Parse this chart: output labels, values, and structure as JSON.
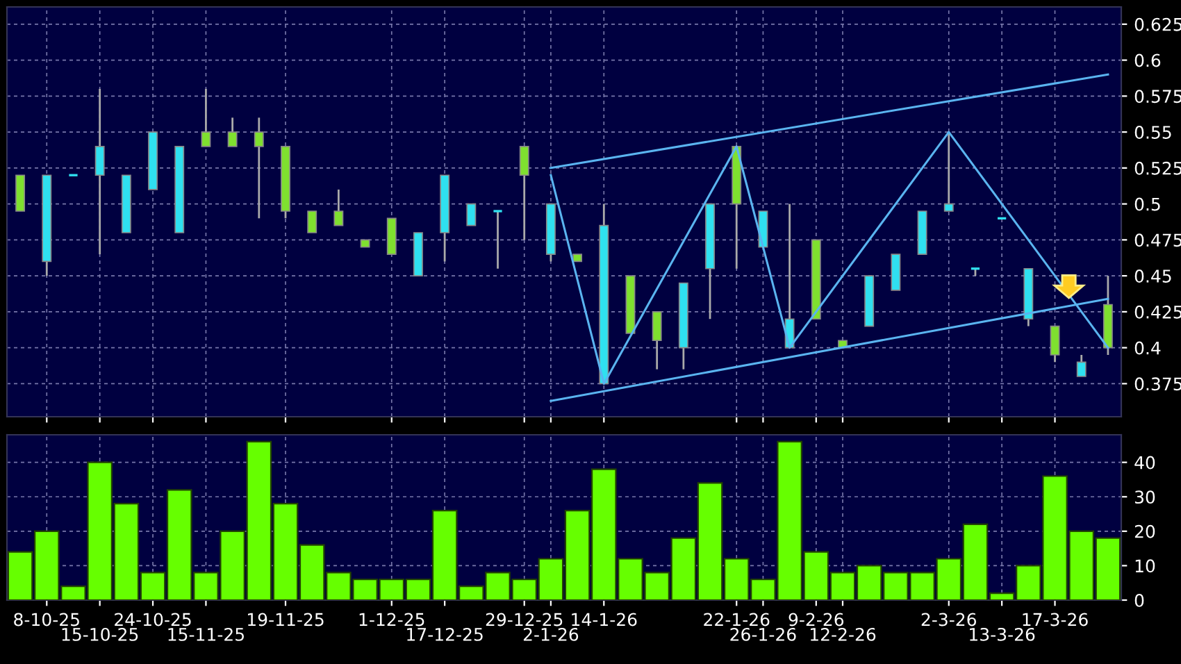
{
  "chart_data": [
    {
      "type": "candlestick",
      "ohlc": [
        [
          0.52,
          0.52,
          0.495,
          0.495
        ],
        [
          0.46,
          0.52,
          0.45,
          0.52
        ],
        [
          0.52,
          0.52,
          0.52,
          0.52
        ],
        [
          0.52,
          0.58,
          0.465,
          0.54
        ],
        [
          0.48,
          0.52,
          0.48,
          0.52
        ],
        [
          0.51,
          0.55,
          0.51,
          0.55
        ],
        [
          0.48,
          0.54,
          0.48,
          0.54
        ],
        [
          0.55,
          0.58,
          0.54,
          0.54
        ],
        [
          0.55,
          0.56,
          0.54,
          0.54
        ],
        [
          0.55,
          0.56,
          0.49,
          0.54
        ],
        [
          0.54,
          0.54,
          0.49,
          0.495
        ],
        [
          0.495,
          0.495,
          0.48,
          0.48
        ],
        [
          0.495,
          0.51,
          0.485,
          0.485
        ],
        [
          0.475,
          0.475,
          0.47,
          0.47
        ],
        [
          0.49,
          0.49,
          0.465,
          0.465
        ],
        [
          0.45,
          0.48,
          0.45,
          0.48
        ],
        [
          0.48,
          0.52,
          0.46,
          0.52
        ],
        [
          0.485,
          0.5,
          0.485,
          0.5
        ],
        [
          0.495,
          0.495,
          0.455,
          0.495
        ],
        [
          0.54,
          0.54,
          0.475,
          0.52
        ],
        [
          0.465,
          0.5,
          0.46,
          0.5
        ],
        [
          0.465,
          0.465,
          0.46,
          0.46
        ],
        [
          0.375,
          0.5,
          0.375,
          0.485
        ],
        [
          0.45,
          0.45,
          0.41,
          0.41
        ],
        [
          0.425,
          0.425,
          0.385,
          0.405
        ],
        [
          0.4,
          0.445,
          0.385,
          0.445
        ],
        [
          0.455,
          0.5,
          0.42,
          0.5
        ],
        [
          0.54,
          0.54,
          0.455,
          0.5
        ],
        [
          0.47,
          0.495,
          0.47,
          0.495
        ],
        [
          0.4,
          0.5,
          0.4,
          0.42
        ],
        [
          0.475,
          0.475,
          0.42,
          0.42
        ],
        [
          0.405,
          0.405,
          0.4,
          0.4
        ],
        [
          0.415,
          0.45,
          0.415,
          0.45
        ],
        [
          0.44,
          0.465,
          0.44,
          0.465
        ],
        [
          0.465,
          0.495,
          0.465,
          0.495
        ],
        [
          0.495,
          0.55,
          0.495,
          0.5
        ],
        [
          0.455,
          0.455,
          0.45,
          0.455
        ],
        [
          0.49,
          0.49,
          0.49,
          0.49
        ],
        [
          0.42,
          0.455,
          0.415,
          0.455
        ],
        [
          0.415,
          0.415,
          0.39,
          0.395
        ],
        [
          0.38,
          0.395,
          0.38,
          0.39
        ],
        [
          0.43,
          0.45,
          0.395,
          0.4
        ]
      ],
      "colors": [
        "#7fe02f",
        "#2fe0f0",
        "#2fe0f0",
        "#2fe0f0",
        "#2fe0f0",
        "#2fe0f0",
        "#2fe0f0",
        "#7fe02f",
        "#7fe02f",
        "#7fe02f",
        "#7fe02f",
        "#7fe02f",
        "#7fe02f",
        "#7fe02f",
        "#7fe02f",
        "#2fe0f0",
        "#2fe0f0",
        "#2fe0f0",
        "#2fe0f0",
        "#7fe02f",
        "#2fe0f0",
        "#7fe02f",
        "#2fe0f0",
        "#7fe02f",
        "#7fe02f",
        "#2fe0f0",
        "#2fe0f0",
        "#7fe02f",
        "#2fe0f0",
        "#2fe0f0",
        "#7fe02f",
        "#7fe02f",
        "#2fe0f0",
        "#2fe0f0",
        "#2fe0f0",
        "#2fe0f0",
        "#2fe0f0",
        "#2fe0f0",
        "#2fe0f0",
        "#7fe02f",
        "#2fe0f0",
        "#7fe02f"
      ],
      "series": [
        {
          "type": "line",
          "color": "#5ab4f0",
          "values": [
            null,
            null,
            null,
            null,
            null,
            null,
            null,
            null,
            null,
            null,
            null,
            null,
            null,
            null,
            null,
            null,
            null,
            null,
            null,
            null,
            0.525,
            null,
            null,
            null,
            null,
            null,
            null,
            null,
            null,
            null,
            null,
            null,
            null,
            null,
            null,
            null,
            null,
            null,
            null,
            null,
            null,
            0.59
          ]
        },
        {
          "type": "line",
          "color": "#5ab4f0",
          "values": [
            null,
            null,
            null,
            null,
            null,
            null,
            null,
            null,
            null,
            null,
            null,
            null,
            null,
            null,
            null,
            null,
            null,
            null,
            null,
            null,
            0.363,
            null,
            null,
            null,
            null,
            null,
            null,
            null,
            null,
            null,
            null,
            null,
            null,
            null,
            null,
            null,
            null,
            null,
            null,
            null,
            null,
            0.434
          ]
        },
        {
          "type": "line",
          "color": "#5ab4f0",
          "values": [
            null,
            null,
            null,
            null,
            null,
            null,
            null,
            null,
            null,
            null,
            null,
            null,
            null,
            null,
            null,
            null,
            null,
            null,
            null,
            null,
            0.52,
            null,
            0.375,
            null,
            null,
            null,
            null,
            0.54,
            null,
            0.4,
            null,
            null,
            null,
            null,
            null,
            0.55,
            null,
            null,
            null,
            null,
            null,
            0.4
          ]
        }
      ],
      "ylim": [
        0.352,
        0.637
      ],
      "yticks": [
        0.375,
        0.4,
        0.425,
        0.45,
        0.475,
        0.5,
        0.525,
        0.55,
        0.575,
        0.6,
        0.625
      ],
      "grid": true,
      "tick_labels": "y"
    },
    {
      "type": "bar",
      "categories": [
        null,
        "8-10-25",
        null,
        "15-10-25",
        null,
        "24-10-25",
        null,
        "15-11-25",
        null,
        null,
        "19-11-25",
        null,
        null,
        null,
        "1-12-25",
        null,
        "17-12-25",
        null,
        null,
        "29-12-25",
        "2-1-26",
        null,
        "14-1-26",
        null,
        null,
        null,
        null,
        "22-1-26",
        "26-1-26",
        null,
        "9-2-26",
        "12-2-26",
        null,
        null,
        null,
        "2-3-26",
        null,
        "13-3-26",
        null,
        "17-3-26",
        null,
        null
      ],
      "values": [
        14,
        20,
        4,
        40,
        28,
        8,
        32,
        8,
        20,
        46,
        28,
        16,
        8,
        6,
        6,
        6,
        26,
        4,
        8,
        6,
        12,
        26,
        38,
        12,
        8,
        18,
        34,
        12,
        6,
        46,
        14,
        8,
        10,
        8,
        8,
        12,
        22,
        2,
        10,
        36,
        20,
        18
      ],
      "color": "#66ff00",
      "ylim": [
        0,
        48
      ],
      "yticks": [
        0,
        10,
        20,
        30,
        40
      ],
      "grid": true
    }
  ]
}
